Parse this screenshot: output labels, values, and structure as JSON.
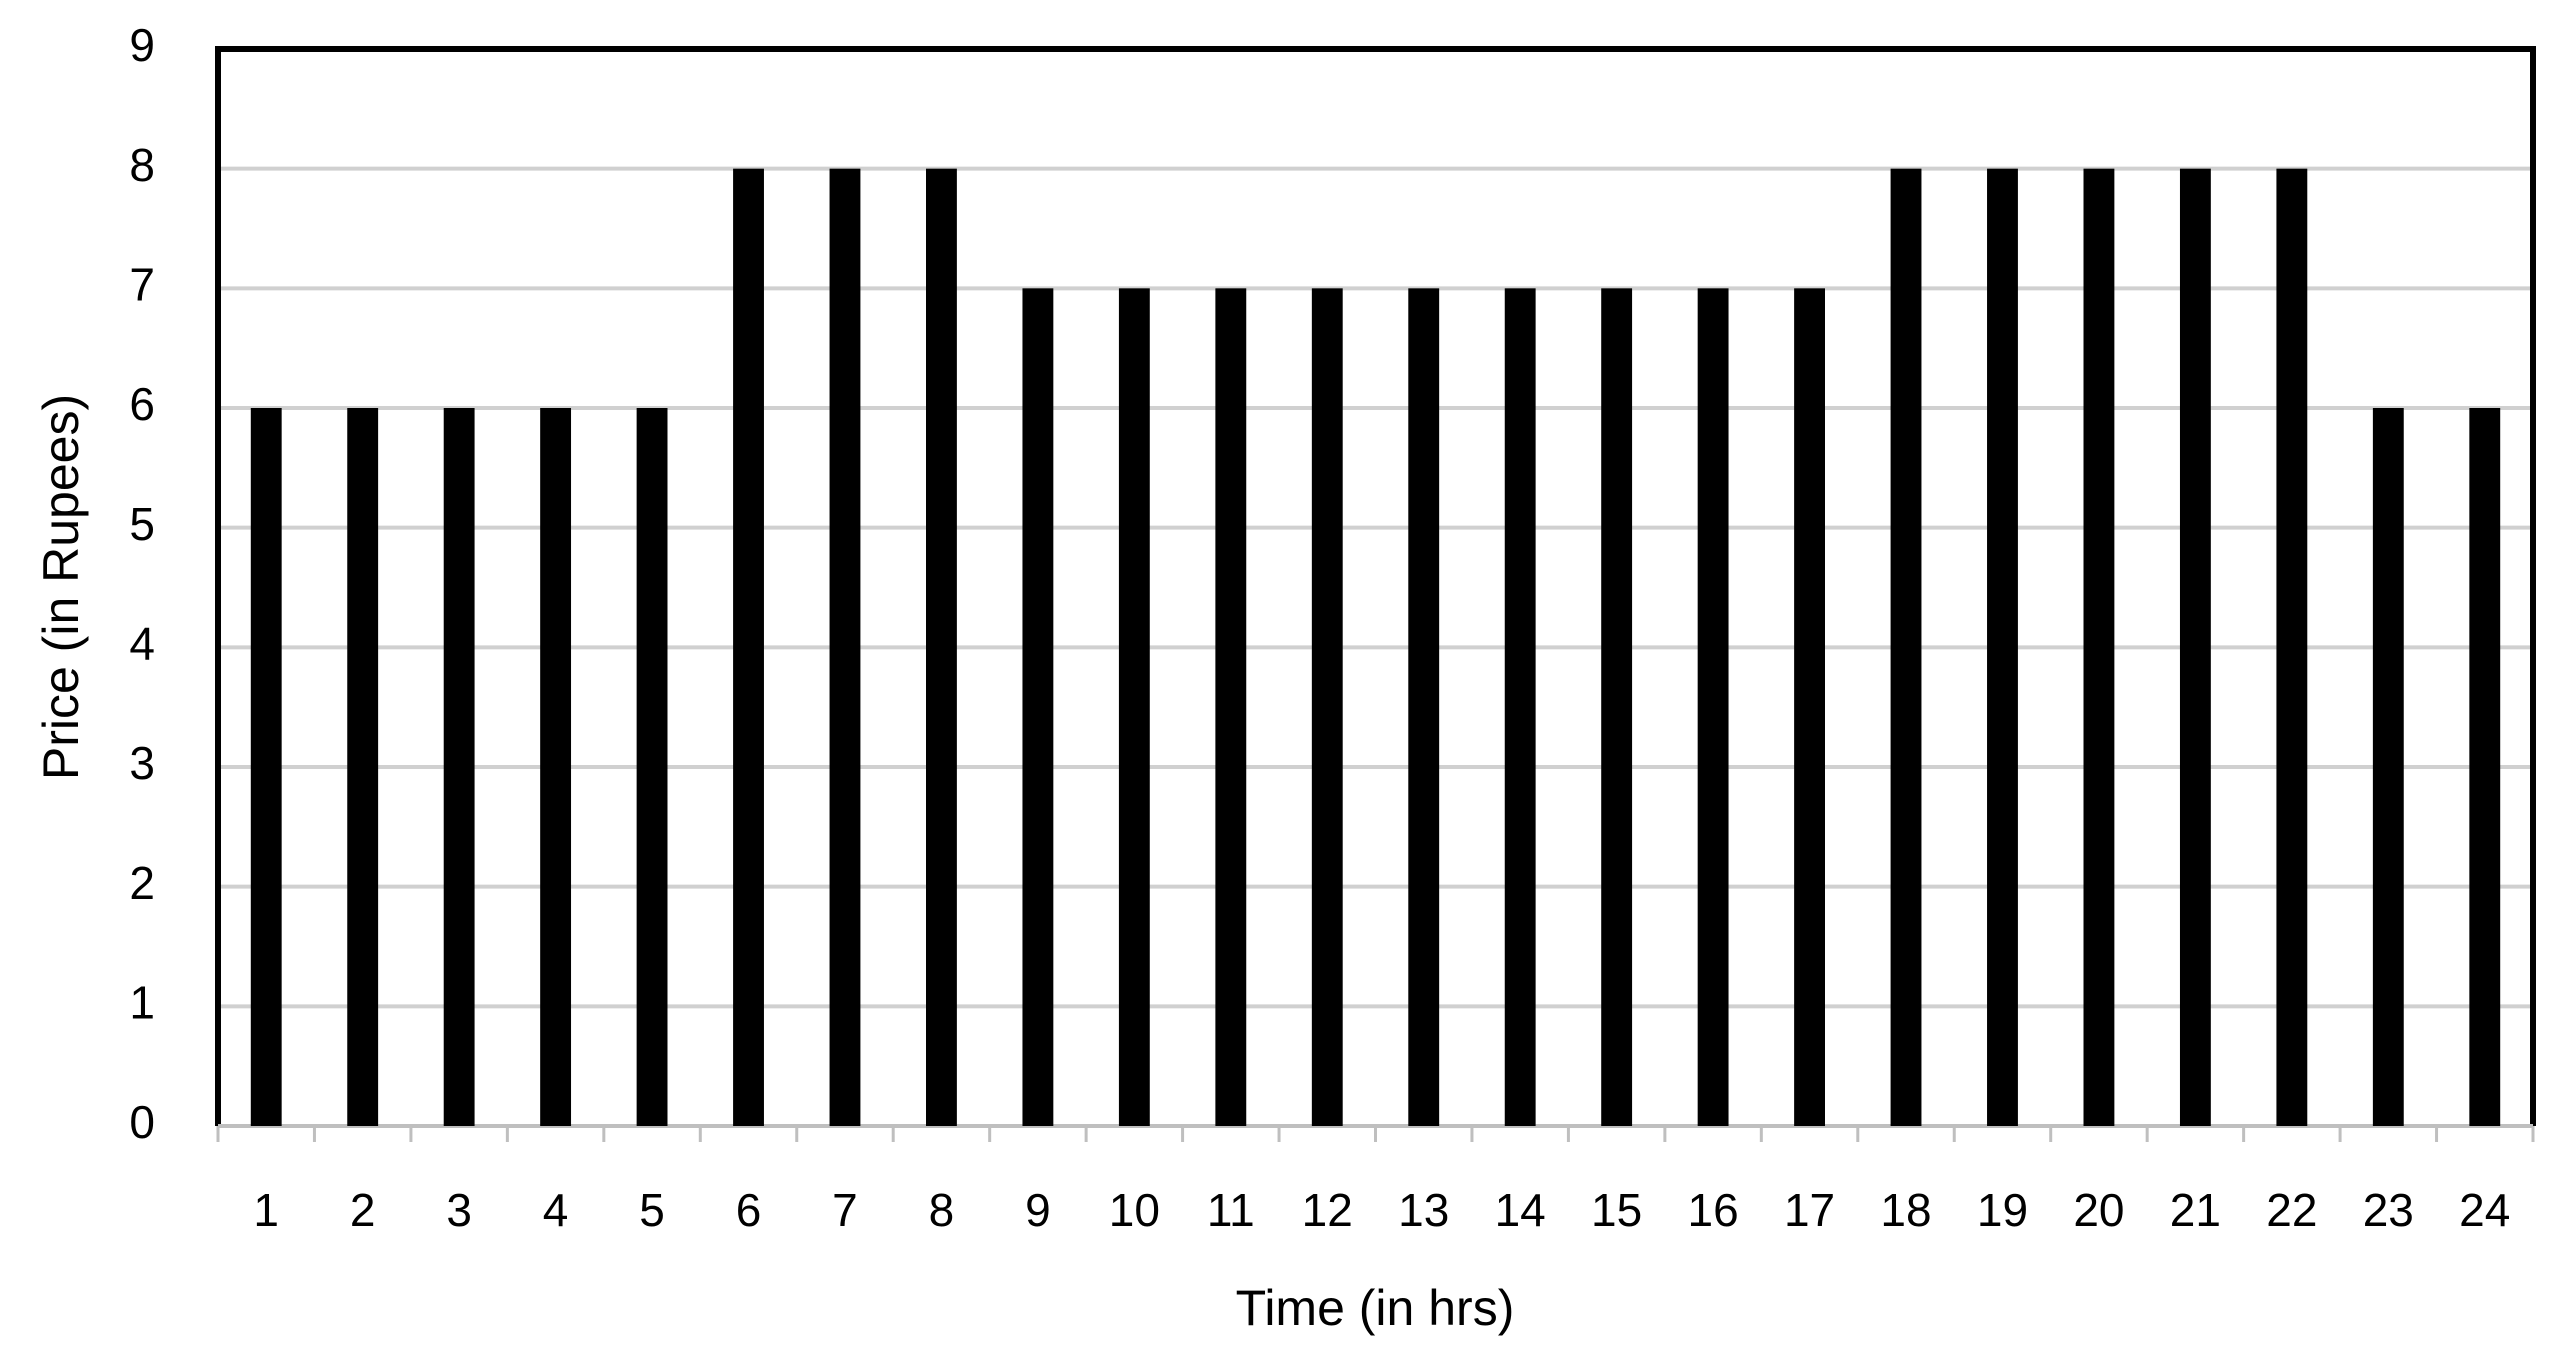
{
  "chart_data": {
    "type": "bar",
    "x_label": "Time (in hrs)",
    "y_label": "Price (in Rupees)",
    "categories": [
      "1",
      "2",
      "3",
      "4",
      "5",
      "6",
      "7",
      "8",
      "9",
      "10",
      "11",
      "12",
      "13",
      "14",
      "15",
      "16",
      "17",
      "18",
      "19",
      "20",
      "21",
      "22",
      "23",
      "24"
    ],
    "values": [
      6,
      6,
      6,
      6,
      6,
      8,
      8,
      8,
      7,
      7,
      7,
      7,
      7,
      7,
      7,
      7,
      7,
      8,
      8,
      8,
      8,
      8,
      6,
      6
    ],
    "color": "#000000",
    "ylim": [
      0,
      9
    ],
    "yticks": [
      0,
      1,
      2,
      3,
      4,
      5,
      6,
      7,
      8,
      9
    ],
    "grid": true
  }
}
